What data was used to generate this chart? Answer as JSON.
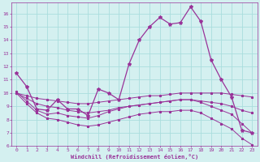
{
  "background_color": "#d4f0f0",
  "grid_color": "#aadddd",
  "line_color": "#993399",
  "xlim": [
    -0.5,
    23.5
  ],
  "ylim": [
    6,
    16.8
  ],
  "yticks": [
    6,
    7,
    8,
    9,
    10,
    11,
    12,
    13,
    14,
    15,
    16
  ],
  "xticks": [
    0,
    1,
    2,
    3,
    4,
    5,
    6,
    7,
    8,
    9,
    10,
    11,
    12,
    13,
    14,
    15,
    16,
    17,
    18,
    19,
    20,
    21,
    22,
    23
  ],
  "xlabel": "Windchill (Refroidissement éolien,°C)",
  "series": {
    "main": {
      "x": [
        0,
        1,
        2,
        3,
        4,
        5,
        6,
        7,
        8,
        9,
        10,
        11,
        12,
        13,
        14,
        15,
        16,
        17,
        18,
        19,
        20,
        21,
        22,
        23
      ],
      "y": [
        11.5,
        10.5,
        8.8,
        8.7,
        9.5,
        8.8,
        8.8,
        8.3,
        10.3,
        10.0,
        9.5,
        12.2,
        14.0,
        15.0,
        15.7,
        15.2,
        15.3,
        16.5,
        15.4,
        12.5,
        11.0,
        9.7,
        7.2,
        7.0
      ]
    },
    "line1": {
      "x": [
        0,
        1,
        2,
        3,
        4,
        5,
        6,
        7,
        8,
        9,
        10,
        11,
        12,
        13,
        14,
        15,
        16,
        17,
        18,
        19,
        20,
        21,
        22,
        23
      ],
      "y": [
        10.0,
        9.8,
        9.6,
        9.5,
        9.4,
        9.3,
        9.2,
        9.2,
        9.3,
        9.4,
        9.5,
        9.6,
        9.7,
        9.8,
        9.8,
        9.9,
        10.0,
        10.0,
        10.0,
        10.0,
        10.0,
        9.9,
        9.8,
        9.7
      ]
    },
    "line2": {
      "x": [
        0,
        1,
        2,
        3,
        4,
        5,
        6,
        7,
        8,
        9,
        10,
        11,
        12,
        13,
        14,
        15,
        16,
        17,
        18,
        19,
        20,
        21,
        22,
        23
      ],
      "y": [
        10.0,
        9.6,
        9.2,
        9.0,
        8.9,
        8.7,
        8.6,
        8.5,
        8.6,
        8.7,
        8.9,
        9.0,
        9.1,
        9.2,
        9.3,
        9.4,
        9.5,
        9.5,
        9.4,
        9.3,
        9.2,
        9.0,
        8.7,
        8.5
      ]
    },
    "line3": {
      "x": [
        0,
        1,
        2,
        3,
        4,
        5,
        6,
        7,
        8,
        9,
        10,
        11,
        12,
        13,
        14,
        15,
        16,
        17,
        18,
        19,
        20,
        21,
        22,
        23
      ],
      "y": [
        10.1,
        9.4,
        8.7,
        8.4,
        8.5,
        8.3,
        8.2,
        8.1,
        8.3,
        8.6,
        8.8,
        9.0,
        9.1,
        9.2,
        9.3,
        9.4,
        9.5,
        9.5,
        9.3,
        9.0,
        8.7,
        8.4,
        7.7,
        7.0
      ]
    },
    "line4": {
      "x": [
        0,
        1,
        2,
        3,
        4,
        5,
        6,
        7,
        8,
        9,
        10,
        11,
        12,
        13,
        14,
        15,
        16,
        17,
        18,
        19,
        20,
        21,
        22,
        23
      ],
      "y": [
        10.0,
        9.2,
        8.5,
        8.1,
        8.0,
        7.8,
        7.6,
        7.5,
        7.6,
        7.8,
        8.0,
        8.2,
        8.4,
        8.5,
        8.6,
        8.6,
        8.7,
        8.7,
        8.5,
        8.1,
        7.7,
        7.3,
        6.6,
        6.1
      ]
    }
  },
  "figsize": [
    3.2,
    2.0
  ],
  "dpi": 100
}
